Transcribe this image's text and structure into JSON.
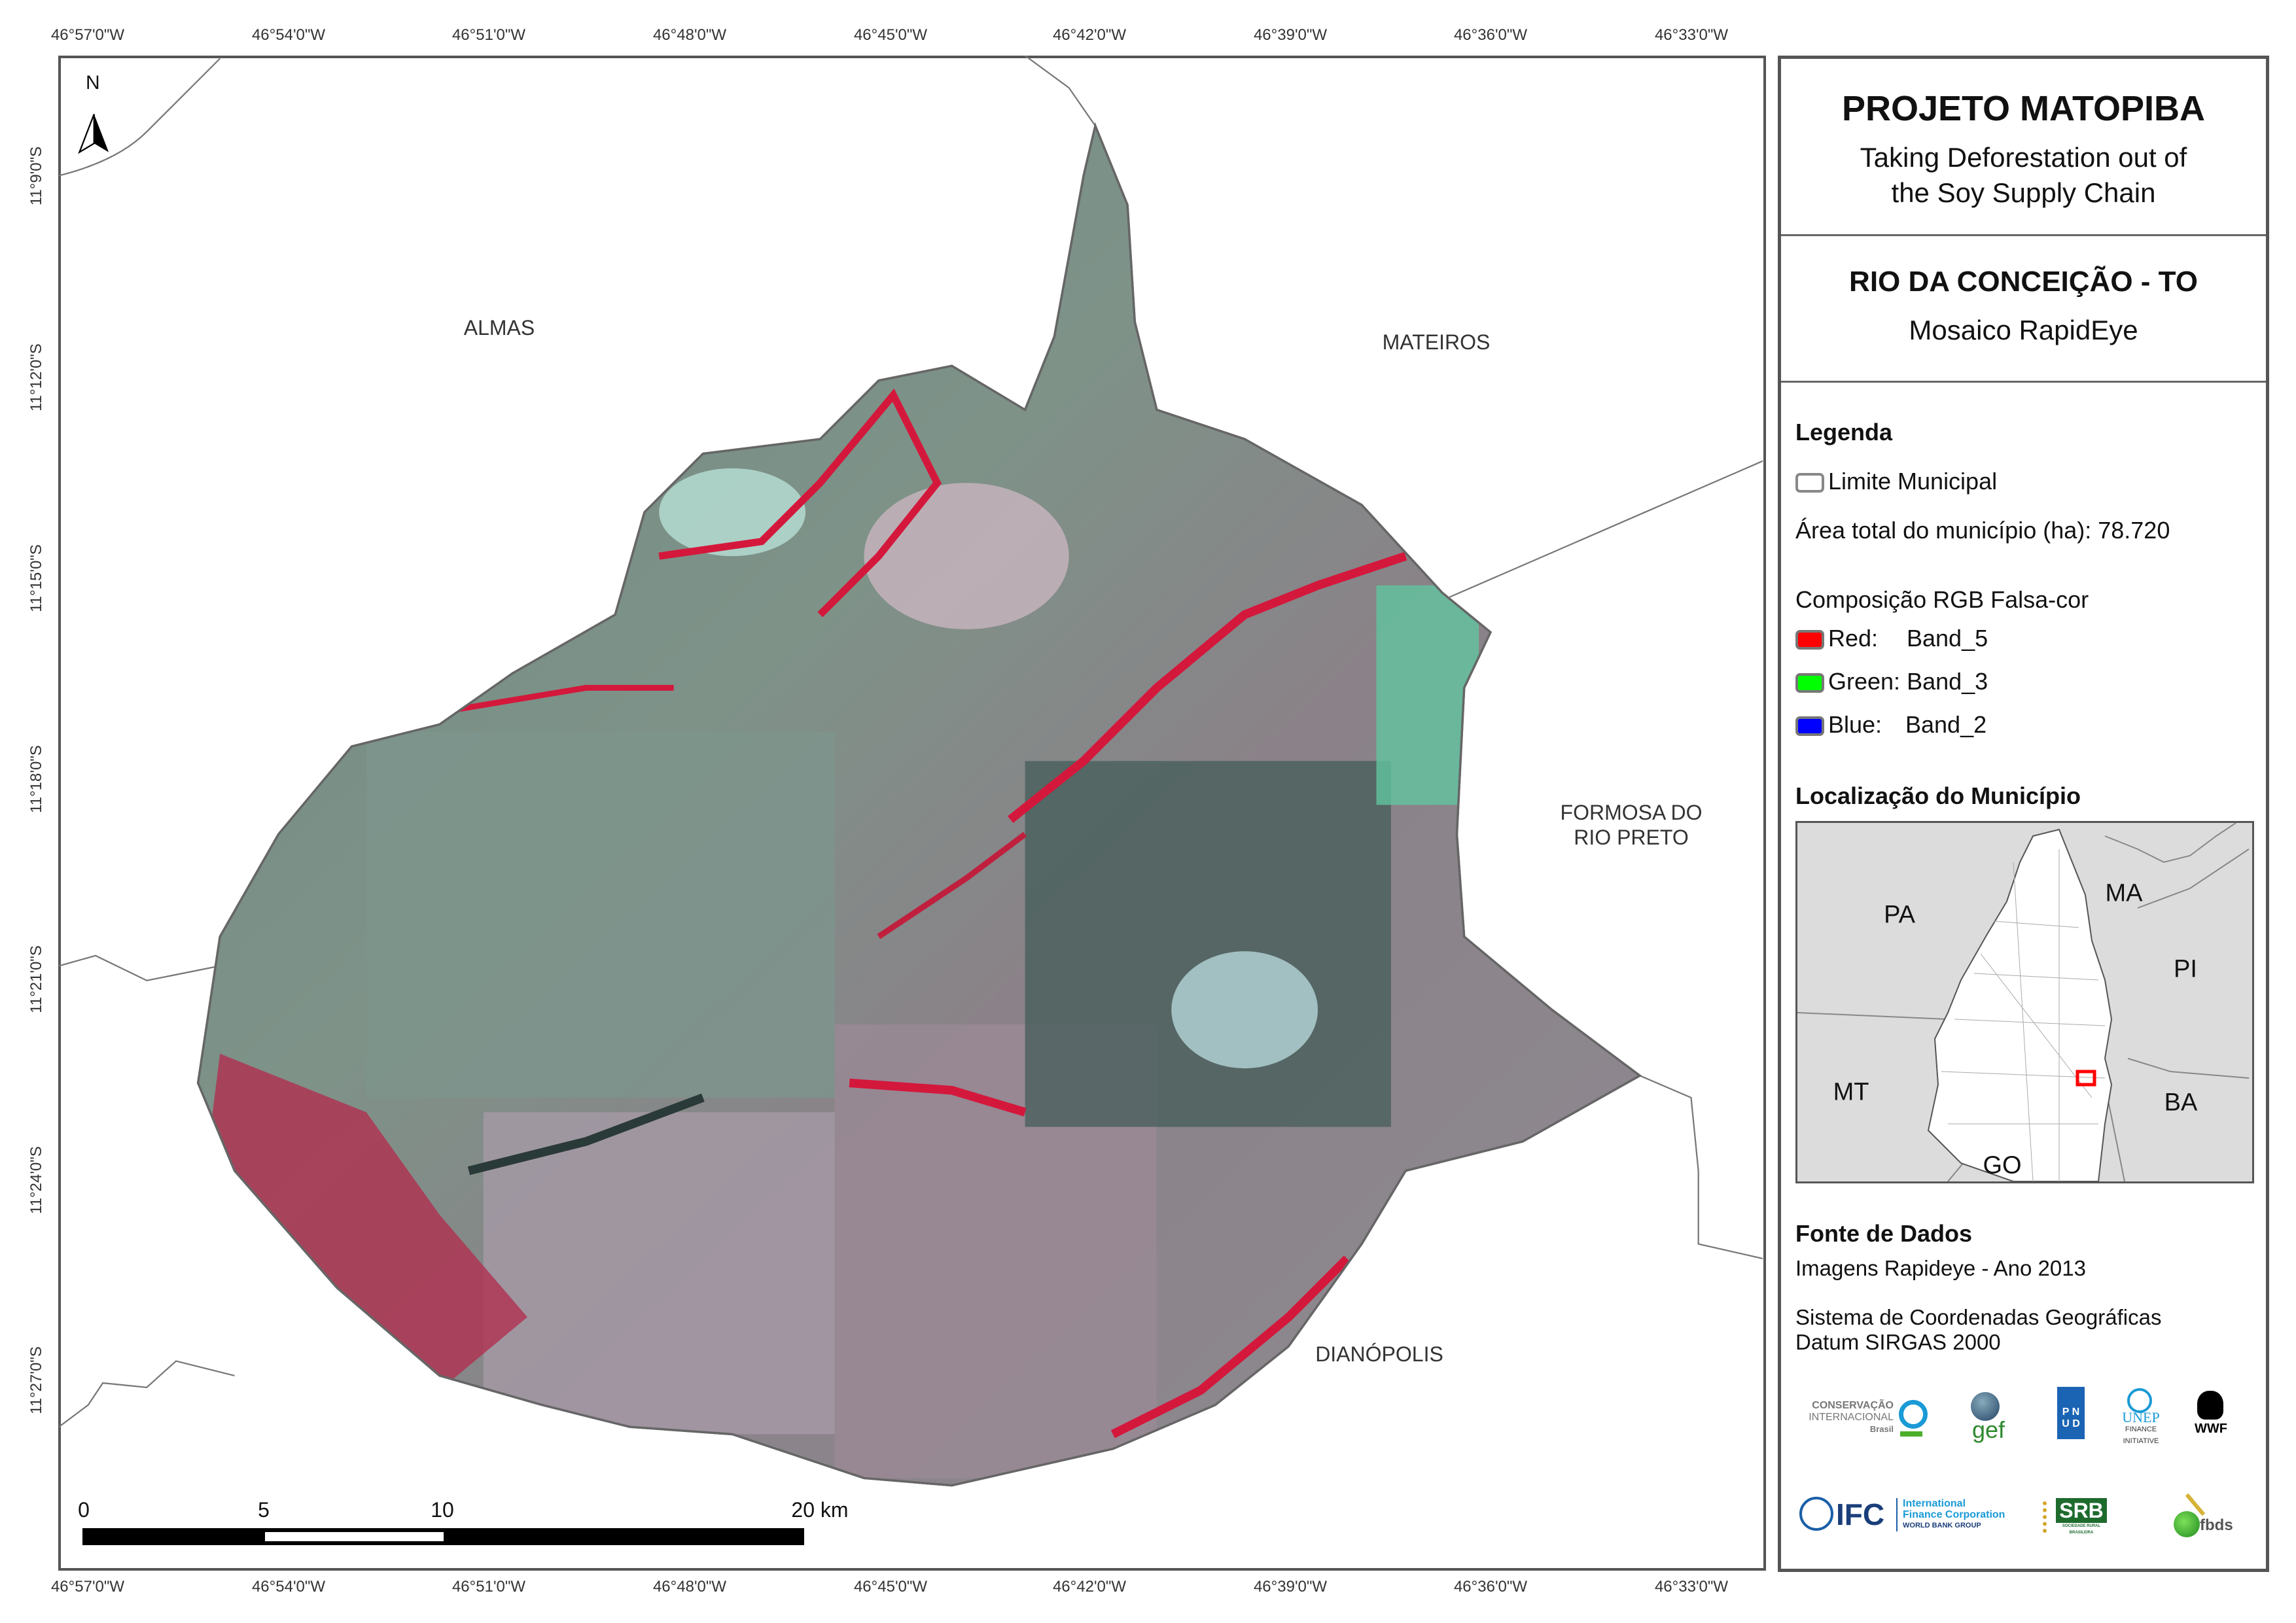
{
  "coordinates": {
    "longitude_labels": [
      "46°57'0\"W",
      "46°54'0\"W",
      "46°51'0\"W",
      "46°48'0\"W",
      "46°45'0\"W",
      "46°42'0\"W",
      "46°39'0\"W",
      "46°36'0\"W",
      "46°33'0\"W"
    ],
    "latitude_labels": [
      "11°9'0\"S",
      "11°12'0\"S",
      "11°15'0\"S",
      "11°18'0\"S",
      "11°21'0\"S",
      "11°24'0\"S",
      "11°27'0\"S"
    ]
  },
  "map": {
    "north_arrow_label": "N",
    "places": {
      "almas": "ALMAS",
      "mateiros": "MATEIROS",
      "formosa_line1": "FORMOSA DO",
      "formosa_line2": "RIO PRETO",
      "dianopolis": "DIANÓPOLIS"
    },
    "scale_bar": {
      "labels": [
        "0",
        "5",
        "10",
        "20 km"
      ]
    },
    "boundary_color": "#666666"
  },
  "panel": {
    "title": "PROJETO MATOPIBA",
    "subtitle_line1": "Taking Deforestation out of",
    "subtitle_line2": "the Soy Supply Chain",
    "municipality": "RIO DA CONCEIÇÃO - TO",
    "product": "Mosaico RapidEye",
    "legend": {
      "heading": "Legenda",
      "limit_label": "Limite Municipal",
      "area_text": "Área total do município (ha): 78.720",
      "composition_heading": "Composição RGB Falsa-cor",
      "bands": [
        {
          "channel": "Red:",
          "band": "Band_5",
          "color": "#ff0000"
        },
        {
          "channel": "Green:",
          "band": "Band_3",
          "color": "#00ff00"
        },
        {
          "channel": "Blue:",
          "band": "Band_2",
          "color": "#0000ff"
        }
      ]
    },
    "location": {
      "heading": "Localização do Município",
      "states": [
        "PA",
        "MA",
        "PI",
        "MT",
        "BA",
        "GO"
      ],
      "highlight_color": "#ff0000"
    },
    "sources": {
      "heading": "Fonte de Dados",
      "imagery": "Imagens Rapideye - Ano 2013",
      "crs_line1": "Sistema de Coordenadas Geográficas",
      "crs_line2": "Datum SIRGAS 2000"
    },
    "logos": {
      "ci_line1": "CONSERVAÇÃO",
      "ci_line2": "INTERNACIONAL",
      "ci_line3": "Brasil",
      "gef": "gef",
      "pnud_line1": "P N",
      "pnud_line2": "U D",
      "unep_line1": "UNEP",
      "unep_line2": "FINANCE",
      "unep_line3": "INITIATIVE",
      "wwf": "WWF",
      "ifc": "IFC",
      "ifc_line1": "International",
      "ifc_line2": "Finance Corporation",
      "ifc_line3": "WORLD BANK GROUP",
      "srb": "SRB",
      "srb_sub": "SOCIEDADE RURAL BRASILEIRA",
      "fbds": "fbds"
    }
  }
}
